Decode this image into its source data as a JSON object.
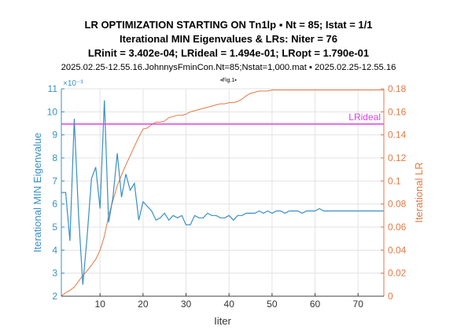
{
  "header": {
    "title_line1": "LR OPTIMIZATION STARTING ON Tn1lp ▪ Nt = 85; Istat = 1/1",
    "title_line2": "Iterational MIN Eigenvalues & LRs: Niter = 76",
    "title_line3": "LRinit = 3.402e-04; LRideal = 1.494e-01; LRopt = 1.790e-01",
    "title_line4": "2025.02.25-12.55.16.JohnnysFminCon.Nt=85;Nstat=1,000.mat ▪ 2025.02.25-12.55.16",
    "figure_tag": "▪Fig.1▪"
  },
  "chart_data": {
    "type": "line",
    "xlabel": "Iiter",
    "ylabel_left": "Iterational MIN Eigenvalue",
    "ylabel_right": "Iterational LR",
    "left_exponent_label": "×10⁻³",
    "xlim": [
      1,
      76
    ],
    "ylim_left": [
      0.002,
      0.011
    ],
    "ylim_right": [
      0,
      0.18
    ],
    "x_ticks": [
      10,
      20,
      30,
      40,
      50,
      60,
      70
    ],
    "y_left_ticks": [
      0.002,
      0.003,
      0.004,
      0.005,
      0.006,
      0.007,
      0.008,
      0.009,
      0.01,
      0.011
    ],
    "y_left_tick_labels": [
      "2",
      "3",
      "4",
      "5",
      "6",
      "7",
      "8",
      "9",
      "10",
      "11"
    ],
    "y_right_ticks": [
      0,
      0.02,
      0.04,
      0.06,
      0.08,
      0.1,
      0.12,
      0.14,
      0.16,
      0.18
    ],
    "y_right_tick_labels": [
      "0",
      "0.02",
      "0.04",
      "0.06",
      "0.08",
      "0.1",
      "0.12",
      "0.14",
      "0.16",
      "0.18"
    ],
    "colors": {
      "eigen": "#3a8fc4",
      "lr": "#e07a45",
      "ideal": "#e040e8"
    },
    "reference_line": {
      "label": "LRideal",
      "value": 0.1494,
      "axis": "right"
    },
    "series": [
      {
        "name": "Iterational MIN Eigenvalue",
        "axis": "left",
        "x": [
          1,
          2,
          3,
          4,
          5,
          6,
          7,
          8,
          9,
          10,
          11,
          12,
          13,
          14,
          15,
          16,
          17,
          18,
          19,
          20,
          21,
          22,
          23,
          24,
          25,
          26,
          27,
          28,
          29,
          30,
          31,
          32,
          33,
          34,
          35,
          36,
          37,
          38,
          39,
          40,
          41,
          42,
          43,
          44,
          45,
          46,
          47,
          48,
          49,
          50,
          51,
          52,
          53,
          54,
          55,
          56,
          57,
          58,
          59,
          60,
          61,
          62,
          63,
          64,
          65,
          66,
          67,
          68,
          69,
          70,
          71,
          72,
          73,
          74,
          75,
          76
        ],
        "values": [
          0.0065,
          0.0065,
          0.0044,
          0.0097,
          0.0055,
          0.0025,
          0.0046,
          0.0071,
          0.0076,
          0.0058,
          0.0105,
          0.0052,
          0.0063,
          0.0082,
          0.0063,
          0.0073,
          0.0066,
          0.0069,
          0.0053,
          0.0061,
          0.0059,
          0.0057,
          0.0053,
          0.0054,
          0.0056,
          0.0053,
          0.0055,
          0.0054,
          0.0055,
          0.0051,
          0.0051,
          0.0055,
          0.0054,
          0.0054,
          0.0056,
          0.0055,
          0.0055,
          0.0054,
          0.0054,
          0.0055,
          0.0053,
          0.0055,
          0.0055,
          0.0056,
          0.0056,
          0.0056,
          0.0057,
          0.0056,
          0.0057,
          0.0056,
          0.0057,
          0.0057,
          0.0056,
          0.0057,
          0.0057,
          0.0057,
          0.0056,
          0.0057,
          0.0057,
          0.0057,
          0.0058,
          0.0057,
          0.0057,
          0.0057,
          0.0057,
          0.0057,
          0.0057,
          0.0057,
          0.0057,
          0.0057,
          0.0057,
          0.0057,
          0.0057,
          0.0057,
          0.0057,
          0.0057
        ]
      },
      {
        "name": "Iterational LR",
        "axis": "right",
        "x": [
          1,
          2,
          3,
          4,
          5,
          6,
          7,
          8,
          9,
          10,
          11,
          12,
          13,
          14,
          15,
          16,
          17,
          18,
          19,
          20,
          21,
          22,
          23,
          24,
          25,
          26,
          27,
          28,
          29,
          30,
          31,
          32,
          33,
          34,
          35,
          36,
          37,
          38,
          39,
          40,
          41,
          42,
          43,
          44,
          45,
          46,
          47,
          48,
          49,
          50,
          51,
          52,
          53,
          54,
          55,
          56,
          57,
          58,
          59,
          60,
          61,
          62,
          63,
          64,
          65,
          66,
          67,
          68,
          69,
          70,
          71,
          72,
          73,
          74,
          75,
          76
        ],
        "values": [
          0.0003,
          0.003,
          0.005,
          0.008,
          0.013,
          0.018,
          0.022,
          0.027,
          0.032,
          0.04,
          0.052,
          0.07,
          0.083,
          0.096,
          0.105,
          0.114,
          0.122,
          0.13,
          0.138,
          0.145,
          0.146,
          0.149,
          0.151,
          0.151,
          0.152,
          0.155,
          0.156,
          0.157,
          0.157,
          0.158,
          0.16,
          0.161,
          0.162,
          0.163,
          0.164,
          0.165,
          0.166,
          0.167,
          0.167,
          0.168,
          0.168,
          0.169,
          0.171,
          0.174,
          0.176,
          0.177,
          0.178,
          0.178,
          0.178,
          0.179,
          0.179,
          0.179,
          0.179,
          0.179,
          0.179,
          0.179,
          0.179,
          0.179,
          0.179,
          0.179,
          0.179,
          0.179,
          0.179,
          0.179,
          0.179,
          0.179,
          0.179,
          0.179,
          0.179,
          0.179,
          0.179,
          0.179,
          0.179,
          0.179,
          0.179,
          0.179
        ]
      }
    ]
  }
}
